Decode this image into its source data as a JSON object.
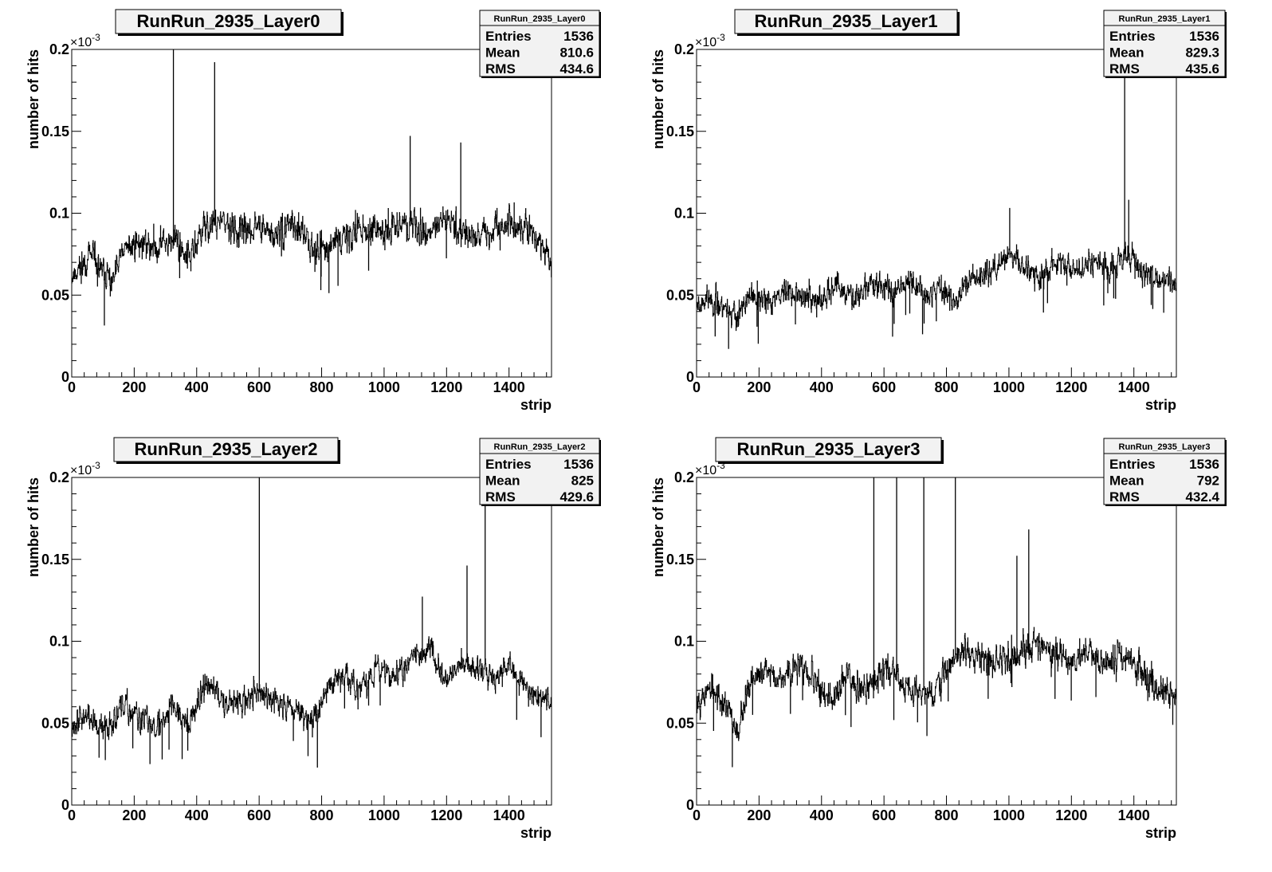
{
  "chart_data": [
    {
      "type": "histogram",
      "title": "RunRun_2935_Layer0",
      "xlabel": "strip",
      "ylabel": "number of hits",
      "y_exponent_label": "×10",
      "y_exponent": "-3",
      "xlim": [
        0,
        1536
      ],
      "ylim": [
        0,
        0.2
      ],
      "xticks": [
        0,
        200,
        400,
        600,
        800,
        1000,
        1200,
        1400
      ],
      "yticks": [
        0,
        0.05,
        0.1,
        0.15,
        0.2
      ],
      "stats": {
        "name": "RunRun_2935_Layer0",
        "rows": [
          {
            "label": "Entries",
            "value": "1536"
          },
          {
            "label": "Mean",
            "value": "810.6"
          },
          {
            "label": "RMS",
            "value": "434.6"
          }
        ]
      },
      "profile": {
        "x": [
          0,
          30,
          60,
          90,
          130,
          160,
          200,
          260,
          330,
          380,
          420,
          470,
          530,
          600,
          650,
          700,
          750,
          800,
          860,
          920,
          990,
          1040,
          1100,
          1150,
          1200,
          1250,
          1300,
          1350,
          1400,
          1460,
          1536
        ],
        "y": [
          0.062,
          0.068,
          0.074,
          0.065,
          0.058,
          0.075,
          0.082,
          0.08,
          0.085,
          0.072,
          0.09,
          0.095,
          0.088,
          0.092,
          0.085,
          0.095,
          0.083,
          0.078,
          0.085,
          0.09,
          0.087,
          0.095,
          0.092,
          0.088,
          0.097,
          0.09,
          0.085,
          0.087,
          0.095,
          0.09,
          0.07
        ]
      },
      "spikes": [
        {
          "x": 325,
          "y": 0.21
        },
        {
          "x": 457,
          "y": 0.192
        },
        {
          "x": 1083,
          "y": 0.147
        },
        {
          "x": 1245,
          "y": 0.143
        }
      ],
      "noise": 0.02,
      "seed": 11
    },
    {
      "type": "histogram",
      "title": "RunRun_2935_Layer1",
      "xlabel": "strip",
      "ylabel": "number of hits",
      "y_exponent_label": "×10",
      "y_exponent": "-3",
      "xlim": [
        0,
        1536
      ],
      "ylim": [
        0,
        0.2
      ],
      "xticks": [
        0,
        200,
        400,
        600,
        800,
        1000,
        1200,
        1400
      ],
      "yticks": [
        0,
        0.05,
        0.1,
        0.15,
        0.2
      ],
      "stats": {
        "name": "RunRun_2935_Layer1",
        "rows": [
          {
            "label": "Entries",
            "value": "1536"
          },
          {
            "label": "Mean",
            "value": "829.3"
          },
          {
            "label": "RMS",
            "value": "435.6"
          }
        ]
      },
      "profile": {
        "x": [
          0,
          40,
          100,
          130,
          170,
          220,
          280,
          340,
          400,
          440,
          500,
          560,
          620,
          680,
          740,
          780,
          830,
          880,
          940,
          1000,
          1040,
          1100,
          1160,
          1220,
          1280,
          1330,
          1380,
          1440,
          1536
        ],
        "y": [
          0.045,
          0.048,
          0.042,
          0.035,
          0.05,
          0.045,
          0.052,
          0.05,
          0.045,
          0.055,
          0.048,
          0.058,
          0.052,
          0.06,
          0.05,
          0.055,
          0.045,
          0.06,
          0.065,
          0.075,
          0.068,
          0.06,
          0.072,
          0.065,
          0.07,
          0.068,
          0.075,
          0.062,
          0.058
        ]
      },
      "spikes": [
        {
          "x": 1370,
          "y": 0.21
        },
        {
          "x": 1383,
          "y": 0.108
        },
        {
          "x": 1002,
          "y": 0.103
        }
      ],
      "noise": 0.017,
      "seed": 23
    },
    {
      "type": "histogram",
      "title": "RunRun_2935_Layer2",
      "xlabel": "strip",
      "ylabel": "number of hits",
      "y_exponent_label": "×10",
      "y_exponent": "-3",
      "xlim": [
        0,
        1536
      ],
      "ylim": [
        0,
        0.2
      ],
      "xticks": [
        0,
        200,
        400,
        600,
        800,
        1000,
        1200,
        1400
      ],
      "yticks": [
        0,
        0.05,
        0.1,
        0.15,
        0.2
      ],
      "stats": {
        "name": "RunRun_2935_Layer2",
        "rows": [
          {
            "label": "Entries",
            "value": "1536"
          },
          {
            "label": "Mean",
            "value": "825"
          },
          {
            "label": "RMS",
            "value": "429.6"
          }
        ]
      },
      "profile": {
        "x": [
          0,
          40,
          100,
          160,
          220,
          280,
          320,
          380,
          430,
          480,
          540,
          600,
          660,
          720,
          770,
          820,
          870,
          920,
          980,
          1040,
          1100,
          1150,
          1200,
          1250,
          1300,
          1350,
          1400,
          1460,
          1536
        ],
        "y": [
          0.05,
          0.055,
          0.045,
          0.06,
          0.052,
          0.048,
          0.062,
          0.05,
          0.075,
          0.065,
          0.062,
          0.07,
          0.062,
          0.06,
          0.05,
          0.072,
          0.08,
          0.07,
          0.085,
          0.078,
          0.09,
          0.095,
          0.075,
          0.088,
          0.083,
          0.078,
          0.085,
          0.07,
          0.063
        ]
      },
      "spikes": [
        {
          "x": 600,
          "y": 0.21
        },
        {
          "x": 1323,
          "y": 0.21
        },
        {
          "x": 1265,
          "y": 0.146
        },
        {
          "x": 1122,
          "y": 0.127
        }
      ],
      "noise": 0.018,
      "seed": 37
    },
    {
      "type": "histogram",
      "title": "RunRun_2935_Layer3",
      "xlabel": "strip",
      "ylabel": "number of hits",
      "y_exponent_label": "×10",
      "y_exponent": "-3",
      "xlim": [
        0,
        1536
      ],
      "ylim": [
        0,
        0.2
      ],
      "xticks": [
        0,
        200,
        400,
        600,
        800,
        1000,
        1200,
        1400
      ],
      "yticks": [
        0,
        0.05,
        0.1,
        0.15,
        0.2
      ],
      "stats": {
        "name": "RunRun_2935_Layer3",
        "rows": [
          {
            "label": "Entries",
            "value": "1536"
          },
          {
            "label": "Mean",
            "value": "792"
          },
          {
            "label": "RMS",
            "value": "432.4"
          }
        ]
      },
      "profile": {
        "x": [
          0,
          40,
          90,
          130,
          170,
          230,
          280,
          330,
          380,
          430,
          480,
          540,
          600,
          650,
          700,
          760,
          820,
          870,
          930,
          990,
          1040,
          1090,
          1150,
          1200,
          1250,
          1300,
          1350,
          1400,
          1460,
          1536
        ],
        "y": [
          0.065,
          0.07,
          0.062,
          0.045,
          0.075,
          0.082,
          0.078,
          0.085,
          0.075,
          0.062,
          0.08,
          0.07,
          0.085,
          0.075,
          0.07,
          0.068,
          0.09,
          0.095,
          0.085,
          0.09,
          0.095,
          0.1,
          0.092,
          0.088,
          0.093,
          0.085,
          0.09,
          0.088,
          0.072,
          0.068
        ]
      },
      "spikes": [
        {
          "x": 567,
          "y": 0.21
        },
        {
          "x": 640,
          "y": 0.21
        },
        {
          "x": 727,
          "y": 0.21
        },
        {
          "x": 828,
          "y": 0.21
        },
        {
          "x": 1063,
          "y": 0.168
        },
        {
          "x": 1025,
          "y": 0.152
        }
      ],
      "noise": 0.02,
      "seed": 53
    }
  ]
}
